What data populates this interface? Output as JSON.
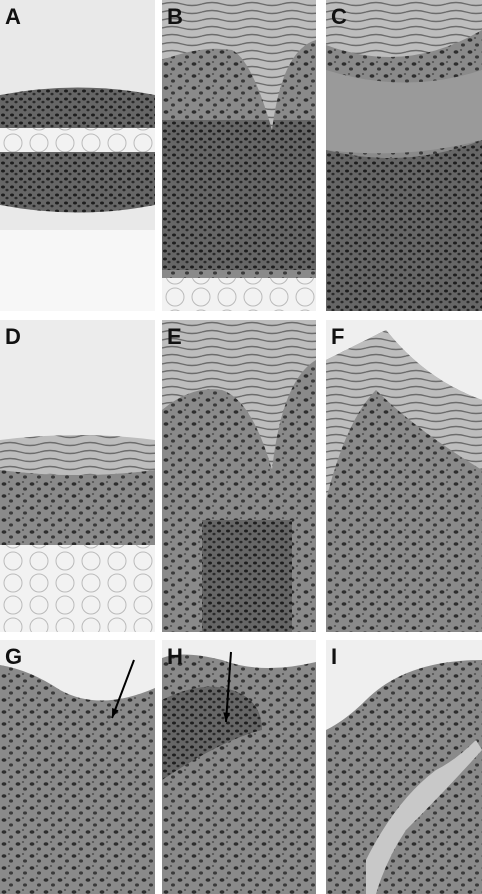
{
  "panels": [
    "A",
    "B",
    "C",
    "D",
    "E",
    "F",
    "G",
    "H",
    "I"
  ]
}
